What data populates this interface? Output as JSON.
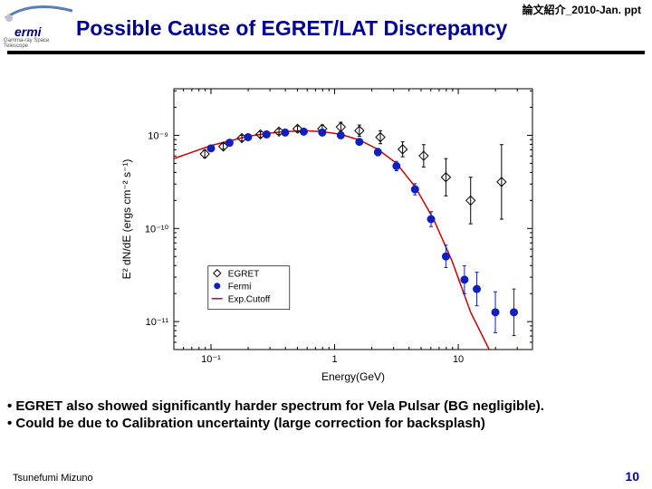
{
  "meta": {
    "top_right": "論文紹介_2010-Jan. ppt",
    "title": "Possible Cause of EGRET/LAT Discrepancy",
    "logo_main": "ermi",
    "logo_sub": "Gamma-ray Space Telescope",
    "footer_author": "Tsunefumi Mizuno",
    "page_number": "10"
  },
  "bullets": {
    "b1": "• EGRET also showed significantly harder spectrum for Vela Pulsar (BG negligible).",
    "b2": "• Could be due to Calibration uncertainty (large correction for backsplash)"
  },
  "chart": {
    "type": "scatter-log-log",
    "xlabel": "Energy(GeV)",
    "ylabel": "E² dN/dE (ergs cm⁻² s⁻¹)",
    "x_range_log10": [
      -1.3,
      1.6
    ],
    "y_range_log10": [
      -11.3,
      -8.5
    ],
    "x_ticks_log10": [
      -1,
      0,
      1
    ],
    "x_tick_labels": [
      "10⁻¹",
      "1",
      "10"
    ],
    "y_ticks_log10": [
      -11,
      -10,
      -9
    ],
    "y_tick_labels": [
      "10⁻¹¹",
      "10⁻¹⁰",
      "10⁻⁹"
    ],
    "minor_ticks": true,
    "frame_color": "#000000",
    "tick_color": "#000000",
    "background_color": "#ffffff",
    "curve": {
      "color": "#d00000",
      "width": 1.5,
      "points_log10": [
        [
          -1.3,
          -9.25
        ],
        [
          -1.15,
          -9.18
        ],
        [
          -1.0,
          -9.11
        ],
        [
          -0.85,
          -9.06
        ],
        [
          -0.7,
          -9.01
        ],
        [
          -0.55,
          -8.98
        ],
        [
          -0.4,
          -8.96
        ],
        [
          -0.25,
          -8.95
        ],
        [
          -0.1,
          -8.96
        ],
        [
          0.05,
          -8.99
        ],
        [
          0.2,
          -9.05
        ],
        [
          0.35,
          -9.15
        ],
        [
          0.5,
          -9.3
        ],
        [
          0.65,
          -9.55
        ],
        [
          0.8,
          -9.9
        ],
        [
          0.95,
          -10.35
        ],
        [
          1.1,
          -10.9
        ],
        [
          1.25,
          -11.5
        ],
        [
          1.35,
          -12.0
        ]
      ]
    },
    "series": [
      {
        "name": "EGRET",
        "marker": "diamond-open",
        "color": "#000000",
        "fill": "none",
        "size": 5,
        "points_log10": [
          [
            -1.05,
            -9.2
          ],
          [
            -0.9,
            -9.12
          ],
          [
            -0.75,
            -9.03
          ],
          [
            -0.6,
            -8.99
          ],
          [
            -0.45,
            -8.96
          ],
          [
            -0.3,
            -8.93
          ],
          [
            -0.1,
            -8.93
          ],
          [
            0.05,
            -8.91
          ],
          [
            0.2,
            -8.95
          ],
          [
            0.37,
            -9.02
          ],
          [
            0.55,
            -9.15
          ],
          [
            0.72,
            -9.22
          ],
          [
            0.9,
            -9.45
          ],
          [
            1.1,
            -9.7
          ],
          [
            1.35,
            -9.5
          ]
        ],
        "yerr": [
          0.04,
          0.03,
          0.03,
          0.03,
          0.03,
          0.03,
          0.04,
          0.05,
          0.06,
          0.07,
          0.08,
          0.12,
          0.2,
          0.25,
          0.4
        ]
      },
      {
        "name": "Fermi",
        "marker": "circle-filled",
        "color": "#1020c0",
        "fill": "#1020c0",
        "size": 4,
        "points_log10": [
          [
            -1.0,
            -9.14
          ],
          [
            -0.85,
            -9.08
          ],
          [
            -0.7,
            -9.02
          ],
          [
            -0.55,
            -8.99
          ],
          [
            -0.4,
            -8.97
          ],
          [
            -0.25,
            -8.96
          ],
          [
            -0.1,
            -8.97
          ],
          [
            0.05,
            -9.0
          ],
          [
            0.2,
            -9.07
          ],
          [
            0.35,
            -9.18
          ],
          [
            0.5,
            -9.33
          ],
          [
            0.65,
            -9.58
          ],
          [
            0.78,
            -9.9
          ],
          [
            0.9,
            -10.3
          ],
          [
            1.05,
            -10.55
          ],
          [
            1.15,
            -10.65
          ],
          [
            1.3,
            -10.9
          ],
          [
            1.45,
            -10.9
          ]
        ],
        "yerr": [
          0.03,
          0.03,
          0.02,
          0.02,
          0.02,
          0.02,
          0.02,
          0.03,
          0.03,
          0.04,
          0.05,
          0.06,
          0.08,
          0.12,
          0.15,
          0.18,
          0.22,
          0.25
        ]
      }
    ],
    "legend": {
      "x_log10": -0.95,
      "y_log10": -10.5,
      "box_color": "#000000",
      "items": [
        "EGRET",
        "Fermi",
        "Exp.Cutoff"
      ]
    }
  },
  "colors": {
    "title_color": "#000099",
    "rule_color": "#000000",
    "page_num_color": "#000099"
  }
}
